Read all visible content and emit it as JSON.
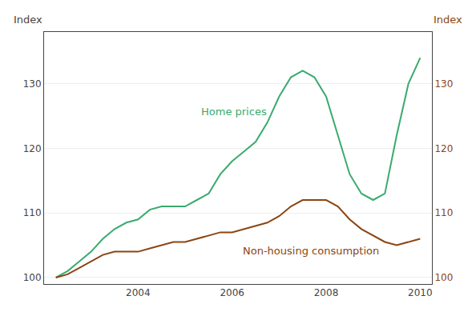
{
  "chart_data": {
    "type": "line",
    "x": [
      2002.25,
      2002.5,
      2002.75,
      2003.0,
      2003.25,
      2003.5,
      2003.75,
      2004.0,
      2004.25,
      2004.5,
      2004.75,
      2005.0,
      2005.25,
      2005.5,
      2005.75,
      2006.0,
      2006.25,
      2006.5,
      2006.75,
      2007.0,
      2007.25,
      2007.5,
      2007.75,
      2008.0,
      2008.25,
      2008.5,
      2008.75,
      2009.0,
      2009.25,
      2009.5,
      2009.75,
      2010.0
    ],
    "series": [
      {
        "color": "#3aaa6e",
        "values": [
          100,
          101,
          102.5,
          104,
          106,
          107.5,
          108.5,
          109,
          110.5,
          111,
          111,
          111,
          112,
          113,
          116,
          118,
          119.5,
          121,
          124,
          128,
          131,
          132,
          131,
          128,
          122,
          116,
          113,
          112,
          113,
          122,
          130,
          134
        ]
      },
      {
        "color": "#8B4513",
        "axis": "y2",
        "values": [
          100,
          100.5,
          101.5,
          102.5,
          103.5,
          104,
          104,
          104,
          104.5,
          105,
          105.5,
          105.5,
          106,
          106.5,
          107,
          107,
          107.5,
          108,
          108.5,
          109.5,
          111,
          112,
          112,
          112,
          111,
          109,
          107.5,
          106.5,
          105.5,
          105,
          105.5,
          106
        ]
      }
    ],
    "xlim": [
      2002.0,
      2010.25
    ],
    "xticks": [
      2004,
      2006,
      2008,
      2010
    ],
    "ylim": [
      99,
      138
    ],
    "yticks": [
      100,
      110,
      120,
      130
    ],
    "y2lim": [
      99,
      138
    ],
    "y2ticks": [
      100,
      110,
      120,
      130
    ],
    "ylabel": "Index",
    "y2label": "Index",
    "grid": true,
    "annotations": [
      {
        "text": "Home prices",
        "x": 2005.3,
        "y": 124.5,
        "color": "#3aaa6e"
      },
      {
        "text": "Non-housing consumption",
        "x": 2006.2,
        "y": 103.0,
        "color": "#8B4513"
      }
    ]
  }
}
